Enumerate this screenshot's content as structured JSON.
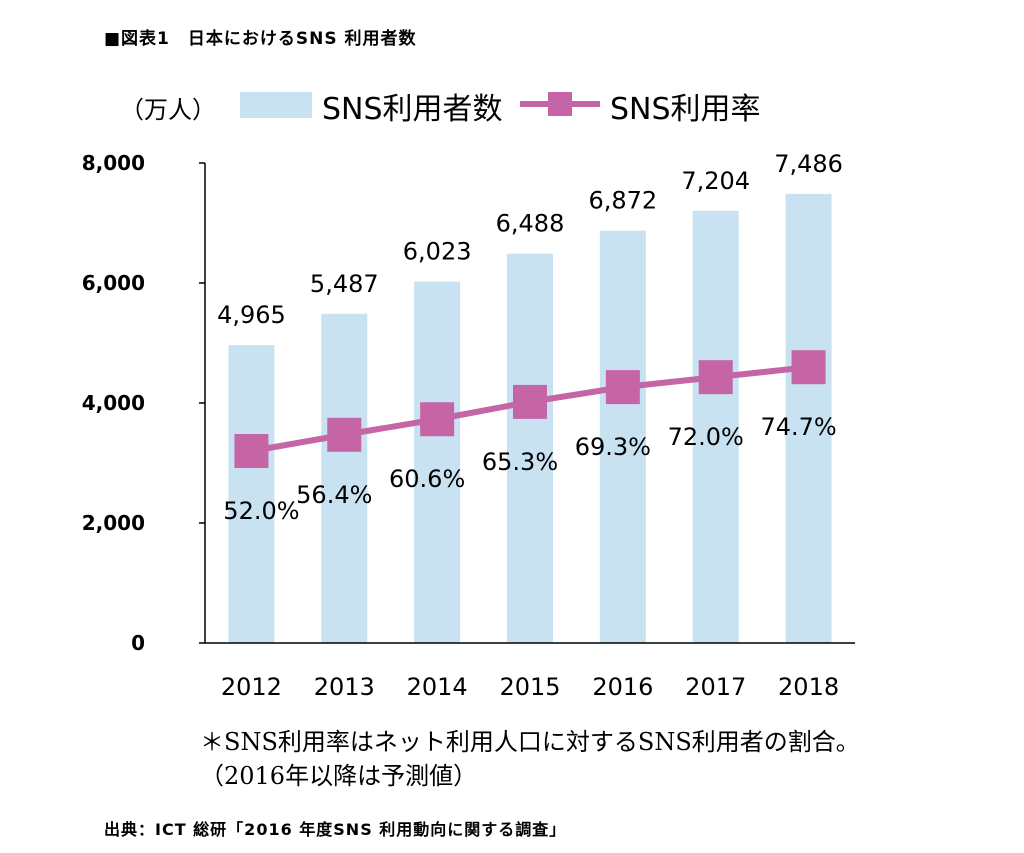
{
  "title": "■図表1　日本におけるSNS 利用者数",
  "unit_label": "（万人）",
  "legend": {
    "bar_label": "SNS利用者数",
    "line_label": "SNS利用率"
  },
  "colors": {
    "bar": "#c9e2f2",
    "line": "#c565a6",
    "axis": "#000000"
  },
  "chart_data": {
    "type": "bar",
    "title": "日本におけるSNS 利用者数",
    "xlabel": "",
    "ylabel": "（万人）",
    "ylim": [
      0,
      8000
    ],
    "yticks": [
      0,
      2000,
      4000,
      6000,
      8000
    ],
    "ytick_labels": [
      "0",
      "2,000",
      "4,000",
      "6,000",
      "8,000"
    ],
    "categories": [
      "2012",
      "2013",
      "2014",
      "2015",
      "2016",
      "2017",
      "2018"
    ],
    "series": [
      {
        "name": "SNS利用者数",
        "type": "bar",
        "values": [
          4965,
          5487,
          6023,
          6488,
          6872,
          7204,
          7486
        ],
        "labels": [
          "4,965",
          "5,487",
          "6,023",
          "6,488",
          "6,872",
          "7,204",
          "7,486"
        ]
      },
      {
        "name": "SNS利用率",
        "type": "line",
        "unit": "%",
        "values": [
          52.0,
          56.4,
          60.6,
          65.3,
          69.3,
          72.0,
          74.7
        ],
        "labels": [
          "52.0%",
          "56.4%",
          "60.6%",
          "65.3%",
          "69.3%",
          "72.0%",
          "74.7%"
        ]
      }
    ]
  },
  "notes": {
    "line1": "＊SNS利用率はネット利用人口に対するSNS利用者の割合。",
    "line2": "（2016年以降は予測値）"
  },
  "source": "出典：ICT 総研「2016 年度SNS 利用動向に関する調査」"
}
